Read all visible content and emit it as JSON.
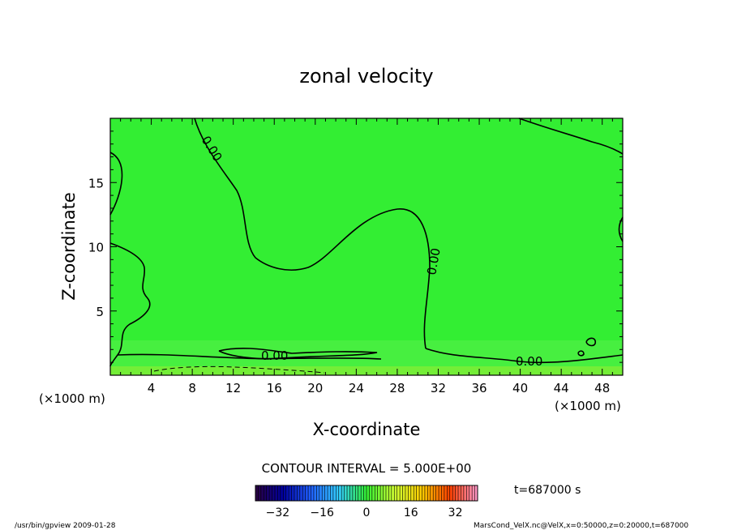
{
  "chart_data": {
    "type": "contour",
    "title": "zonal velocity",
    "xlabel": "X-coordinate",
    "ylabel": "Z-coordinate",
    "x_unit": "(×1000 m)",
    "y_unit": "(×1000 m)",
    "xlim": [
      0,
      50
    ],
    "ylim": [
      0,
      20
    ],
    "x_ticks": [
      4,
      8,
      12,
      16,
      20,
      24,
      28,
      32,
      36,
      40,
      44,
      48
    ],
    "y_ticks": [
      5,
      10,
      15
    ],
    "contour_interval_text": "CONTOUR INTERVAL = 5.000E+00",
    "contour_labels": [
      "0.00",
      "0.00",
      "0.00",
      "0.00"
    ],
    "fill_color": "#33ee33",
    "time_text": "t=687000 s",
    "colorbar": {
      "ticks": [
        -32,
        -16,
        0,
        16,
        32
      ],
      "range": [
        -40,
        40
      ],
      "colors": [
        "#2a0040",
        "#0000a0",
        "#2060ff",
        "#33ccff",
        "#33ee33",
        "#ccff33",
        "#ffcc00",
        "#ff4000",
        "#ff99cc"
      ]
    }
  },
  "footer": {
    "left": "/usr/bin/gpview   2009-01-28",
    "right": "MarsCond_VelX.nc@VelX,x=0:50000,z=0:20000,t=687000"
  }
}
